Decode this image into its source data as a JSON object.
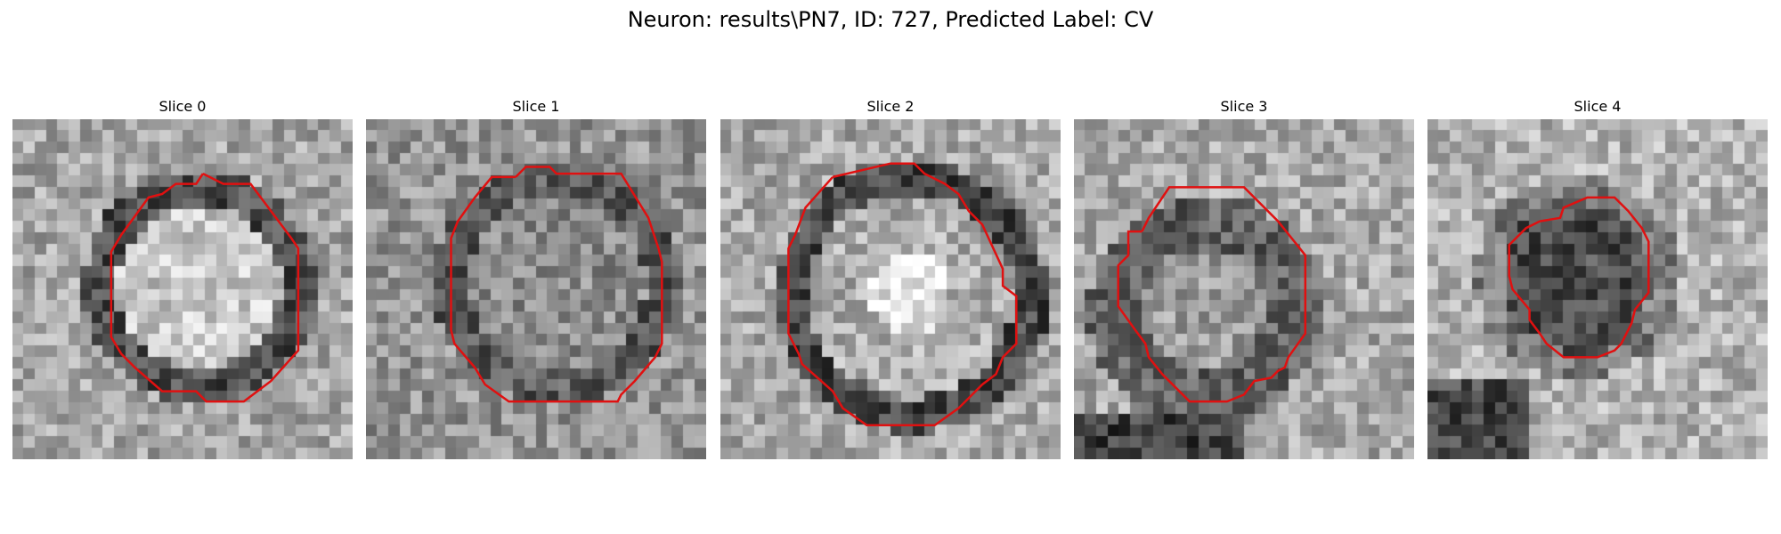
{
  "figure": {
    "title": "Neuron: results\\PN7, ID: 727, Predicted Label: CV"
  },
  "contour_color": "#e01010",
  "panels": [
    {
      "title": "Slice 0",
      "seed": 11,
      "blob": "bright-ring",
      "contour": [
        [
          0.56,
          0.16
        ],
        [
          0.62,
          0.19
        ],
        [
          0.7,
          0.19
        ],
        [
          0.82,
          0.35
        ],
        [
          0.84,
          0.38
        ],
        [
          0.84,
          0.68
        ],
        [
          0.76,
          0.77
        ],
        [
          0.72,
          0.8
        ],
        [
          0.68,
          0.83
        ],
        [
          0.57,
          0.83
        ],
        [
          0.54,
          0.8
        ],
        [
          0.44,
          0.8
        ],
        [
          0.36,
          0.73
        ],
        [
          0.32,
          0.69
        ],
        [
          0.29,
          0.64
        ],
        [
          0.29,
          0.39
        ],
        [
          0.32,
          0.34
        ],
        [
          0.4,
          0.23
        ],
        [
          0.44,
          0.22
        ],
        [
          0.48,
          0.19
        ],
        [
          0.54,
          0.19
        ]
      ]
    },
    {
      "title": "Slice 1",
      "seed": 23,
      "blob": "dark-ring",
      "contour": [
        [
          0.44,
          0.17
        ],
        [
          0.47,
          0.14
        ],
        [
          0.54,
          0.14
        ],
        [
          0.56,
          0.16
        ],
        [
          0.75,
          0.16
        ],
        [
          0.83,
          0.29
        ],
        [
          0.86,
          0.38
        ],
        [
          0.87,
          0.42
        ],
        [
          0.87,
          0.66
        ],
        [
          0.85,
          0.7
        ],
        [
          0.79,
          0.77
        ],
        [
          0.76,
          0.8
        ],
        [
          0.75,
          0.81
        ],
        [
          0.74,
          0.83
        ],
        [
          0.42,
          0.83
        ],
        [
          0.35,
          0.78
        ],
        [
          0.32,
          0.73
        ],
        [
          0.26,
          0.66
        ],
        [
          0.25,
          0.62
        ],
        [
          0.25,
          0.35
        ],
        [
          0.27,
          0.3
        ],
        [
          0.32,
          0.23
        ],
        [
          0.37,
          0.17
        ]
      ]
    },
    {
      "title": "Slice 2",
      "seed": 37,
      "blob": "bright-center",
      "contour": [
        [
          0.33,
          0.17
        ],
        [
          0.5,
          0.13
        ],
        [
          0.57,
          0.13
        ],
        [
          0.6,
          0.16
        ],
        [
          0.66,
          0.19
        ],
        [
          0.7,
          0.22
        ],
        [
          0.73,
          0.27
        ],
        [
          0.77,
          0.31
        ],
        [
          0.83,
          0.44
        ],
        [
          0.83,
          0.49
        ],
        [
          0.87,
          0.52
        ],
        [
          0.87,
          0.66
        ],
        [
          0.83,
          0.7
        ],
        [
          0.81,
          0.75
        ],
        [
          0.77,
          0.78
        ],
        [
          0.73,
          0.82
        ],
        [
          0.7,
          0.85
        ],
        [
          0.63,
          0.9
        ],
        [
          0.43,
          0.9
        ],
        [
          0.36,
          0.85
        ],
        [
          0.33,
          0.8
        ],
        [
          0.24,
          0.72
        ],
        [
          0.23,
          0.69
        ],
        [
          0.2,
          0.63
        ],
        [
          0.2,
          0.38
        ],
        [
          0.22,
          0.34
        ],
        [
          0.25,
          0.26
        ]
      ]
    },
    {
      "title": "Slice 3",
      "seed": 53,
      "blob": "mixed",
      "contour": [
        [
          0.2,
          0.33
        ],
        [
          0.22,
          0.29
        ],
        [
          0.28,
          0.2
        ],
        [
          0.5,
          0.2
        ],
        [
          0.6,
          0.3
        ],
        [
          0.68,
          0.4
        ],
        [
          0.68,
          0.63
        ],
        [
          0.63,
          0.7
        ],
        [
          0.62,
          0.73
        ],
        [
          0.6,
          0.74
        ],
        [
          0.58,
          0.76
        ],
        [
          0.53,
          0.77
        ],
        [
          0.5,
          0.81
        ],
        [
          0.45,
          0.83
        ],
        [
          0.34,
          0.83
        ],
        [
          0.26,
          0.75
        ],
        [
          0.22,
          0.7
        ],
        [
          0.21,
          0.66
        ],
        [
          0.18,
          0.62
        ],
        [
          0.13,
          0.55
        ],
        [
          0.13,
          0.43
        ],
        [
          0.16,
          0.4
        ],
        [
          0.16,
          0.33
        ]
      ]
    },
    {
      "title": "Slice 4",
      "seed": 71,
      "blob": "dark-center",
      "contour": [
        [
          0.33,
          0.3
        ],
        [
          0.39,
          0.29
        ],
        [
          0.4,
          0.26
        ],
        [
          0.47,
          0.23
        ],
        [
          0.55,
          0.23
        ],
        [
          0.59,
          0.27
        ],
        [
          0.63,
          0.32
        ],
        [
          0.65,
          0.36
        ],
        [
          0.65,
          0.51
        ],
        [
          0.61,
          0.56
        ],
        [
          0.6,
          0.6
        ],
        [
          0.57,
          0.66
        ],
        [
          0.55,
          0.68
        ],
        [
          0.5,
          0.7
        ],
        [
          0.4,
          0.7
        ],
        [
          0.35,
          0.66
        ],
        [
          0.33,
          0.63
        ],
        [
          0.3,
          0.59
        ],
        [
          0.3,
          0.56
        ],
        [
          0.25,
          0.5
        ],
        [
          0.24,
          0.46
        ],
        [
          0.24,
          0.37
        ],
        [
          0.29,
          0.32
        ]
      ]
    }
  ]
}
